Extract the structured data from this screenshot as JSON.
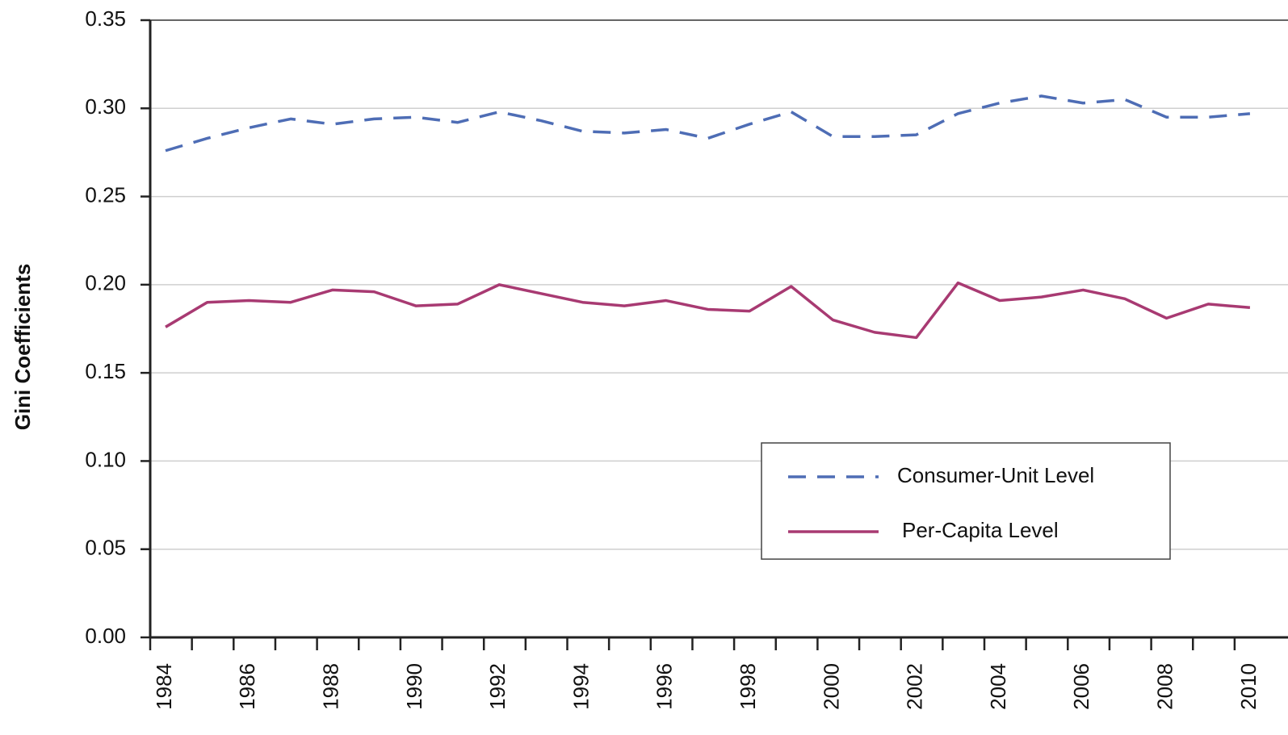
{
  "chart_data": {
    "type": "line",
    "y_label": "Gini Coefficients",
    "categories": [
      "1984",
      null,
      "1986",
      null,
      "1988",
      null,
      "1990",
      null,
      "1992",
      null,
      "1994",
      null,
      "1996",
      null,
      "1998",
      null,
      "2000",
      null,
      "2002",
      null,
      "2004",
      null,
      "2006",
      null,
      "2008",
      null,
      "2010"
    ],
    "series": [
      {
        "name": "Consumer-Unit Level",
        "color": "#4e6db5",
        "dashed": true,
        "values": [
          0.276,
          0.283,
          0.289,
          0.294,
          0.291,
          0.294,
          0.295,
          0.292,
          0.298,
          0.293,
          0.287,
          0.286,
          0.288,
          0.283,
          0.291,
          0.298,
          0.284,
          0.284,
          0.285,
          0.297,
          0.303,
          0.307,
          0.303,
          0.305,
          0.295,
          0.295,
          0.297
        ]
      },
      {
        "name": "Per-Capita Level",
        "color": "#a83a72",
        "dashed": false,
        "values": [
          0.176,
          0.19,
          0.191,
          0.19,
          0.197,
          0.196,
          0.188,
          0.189,
          0.2,
          0.195,
          0.19,
          0.188,
          0.191,
          0.186,
          0.185,
          0.199,
          0.18,
          0.173,
          0.17,
          0.201,
          0.191,
          0.193,
          0.197,
          0.192,
          0.181,
          0.189,
          0.187
        ]
      }
    ],
    "ylim": [
      0,
      0.35
    ],
    "yticks": [
      {
        "value": 0,
        "label": "0.00"
      },
      0.05,
      {
        "value": 0.1,
        "label": "0.10"
      },
      0.15,
      {
        "value": 0.2,
        "label": "0.20"
      },
      0.25,
      {
        "value": 0.3,
        "label": "0.30"
      },
      0.35
    ],
    "grid": true,
    "legend": "lower right"
  }
}
